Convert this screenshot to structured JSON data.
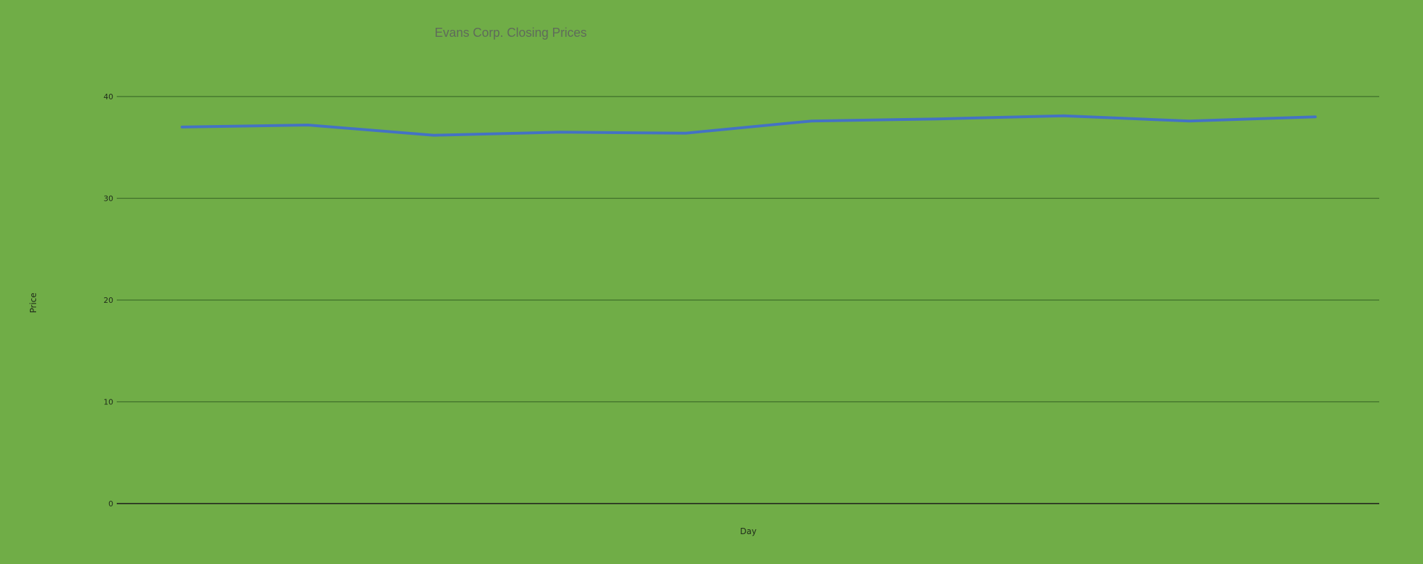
{
  "chart_data": {
    "type": "line",
    "title": "Evans Corp. Closing Prices",
    "xlabel": "Day",
    "ylabel": "Price",
    "ylim": [
      0,
      40
    ],
    "yticks": [
      0,
      10,
      20,
      30,
      40
    ],
    "x": [
      1,
      2,
      3,
      4,
      5,
      6,
      7,
      8,
      9,
      10
    ],
    "series": [
      {
        "values": [
          37.0,
          37.2,
          36.2,
          36.5,
          36.4,
          37.6,
          37.8,
          38.1,
          37.6,
          38.0
        ]
      }
    ],
    "grid": true,
    "legend": "none",
    "x_tick_labels_visible": false
  },
  "colors": {
    "background": "#70ad47",
    "line": "#4472c4",
    "gridline": "#3e6e2a",
    "baseline": "#1a1a1a",
    "title": "#5f6b5a"
  }
}
